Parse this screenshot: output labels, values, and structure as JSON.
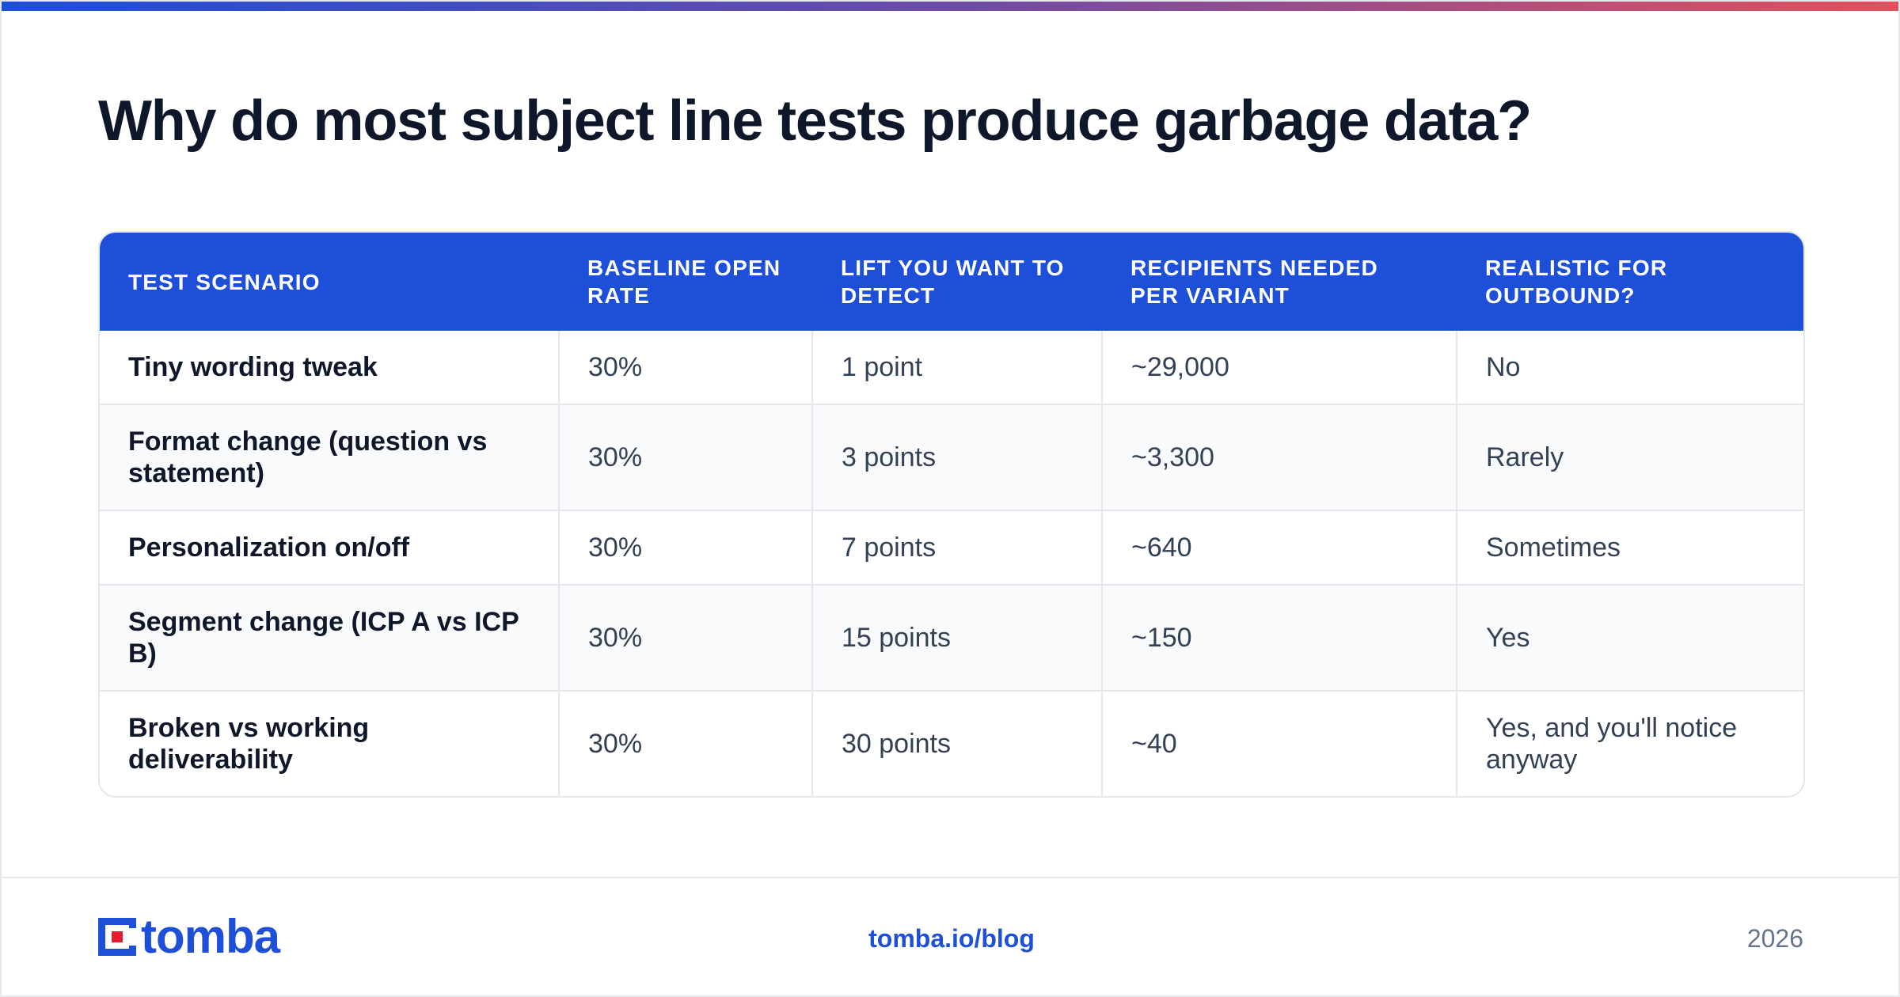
{
  "page": {
    "title": "Why do most subject line tests produce garbage data?",
    "colors": {
      "accent": "#1d4fd8",
      "logo_dot": "#e11d2e",
      "gradient_start": "#1d4ed8",
      "gradient_end": "#e2505c"
    }
  },
  "table": {
    "headers": [
      "TEST SCENARIO",
      "BASELINE OPEN RATE",
      "LIFT YOU WANT TO DETECT",
      "RECIPIENTS NEEDED PER VARIANT",
      "REALISTIC FOR OUTBOUND?"
    ],
    "rows": [
      [
        "Tiny wording tweak",
        "30%",
        "1 point",
        "~29,000",
        "No"
      ],
      [
        "Format change (question vs statement)",
        "30%",
        "3 points",
        "~3,300",
        "Rarely"
      ],
      [
        "Personalization on/off",
        "30%",
        "7 points",
        "~640",
        "Sometimes"
      ],
      [
        "Segment change (ICP A vs ICP B)",
        "30%",
        "15 points",
        "~150",
        "Yes"
      ],
      [
        "Broken vs working deliverability",
        "30%",
        "30 points",
        "~40",
        "Yes, and you'll notice anyway"
      ]
    ]
  },
  "footer": {
    "logo_text": "tomba",
    "logo_icon": "tomba-logo-icon",
    "url": "tomba.io/blog",
    "year": "2026"
  }
}
